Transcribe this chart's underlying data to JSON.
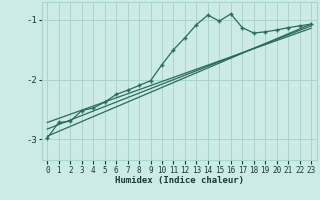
{
  "xlabel": "Humidex (Indice chaleur)",
  "bg_color": "#cceae6",
  "grid_color": "#aad4cf",
  "line_color": "#2a6b5e",
  "xlim": [
    -0.5,
    23.5
  ],
  "ylim": [
    -3.35,
    -0.7
  ],
  "yticks": [
    -3,
    -2,
    -1
  ],
  "xticks": [
    0,
    1,
    2,
    3,
    4,
    5,
    6,
    7,
    8,
    9,
    10,
    11,
    12,
    13,
    14,
    15,
    16,
    17,
    18,
    19,
    20,
    21,
    22,
    23
  ],
  "main_line_x": [
    0,
    1,
    2,
    3,
    4,
    5,
    6,
    7,
    8,
    9,
    10,
    11,
    12,
    13,
    14,
    15,
    16,
    17,
    18,
    19,
    20,
    21,
    22,
    23
  ],
  "main_line_y": [
    -2.98,
    -2.72,
    -2.7,
    -2.52,
    -2.48,
    -2.38,
    -2.25,
    -2.18,
    -2.1,
    -2.02,
    -1.75,
    -1.5,
    -1.3,
    -1.08,
    -0.92,
    -1.02,
    -0.9,
    -1.13,
    -1.22,
    -1.2,
    -1.17,
    -1.13,
    -1.1,
    -1.07
  ],
  "line2_x": [
    0,
    23
  ],
  "line2_y": [
    -2.95,
    -1.07
  ],
  "line3_x": [
    0,
    23
  ],
  "line3_y": [
    -2.83,
    -1.1
  ],
  "line4_x": [
    0,
    23
  ],
  "line4_y": [
    -2.72,
    -1.14
  ]
}
